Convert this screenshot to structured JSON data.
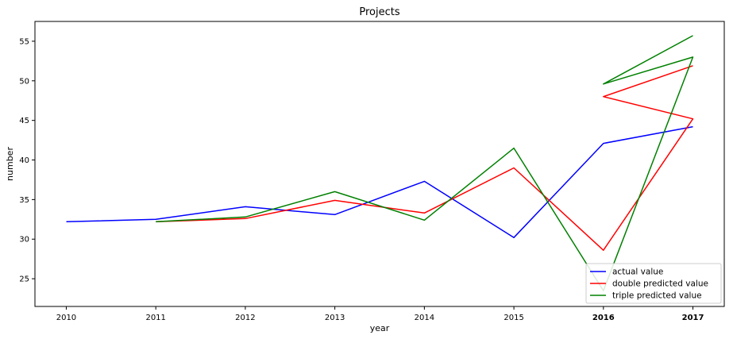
{
  "chart_data": {
    "type": "line",
    "title": "Projects",
    "xlabel": "year",
    "ylabel": "number",
    "xlim": [
      2009.65,
      2017.35
    ],
    "ylim": [
      21.5,
      57.5
    ],
    "xticks": [
      2010,
      2011,
      2012,
      2013,
      2014,
      2015,
      2016,
      2017
    ],
    "xtick_labels": [
      "2010",
      "2011",
      "2012",
      "2013",
      "2014",
      "2015",
      "2016",
      "2017"
    ],
    "xticks_bold": [
      2016,
      2017
    ],
    "yticks": [
      25,
      30,
      35,
      40,
      45,
      50,
      55
    ],
    "ytick_labels": [
      "25",
      "30",
      "35",
      "40",
      "45",
      "50",
      "55"
    ],
    "grid": false,
    "legend_position": "bottom-right",
    "series": [
      {
        "name": "actual value",
        "color": "#0000ff",
        "x": [
          2010,
          2011,
          2012,
          2013,
          2014,
          2015,
          2016,
          2017
        ],
        "y": [
          32.2,
          32.5,
          34.1,
          33.1,
          37.3,
          30.2,
          42.1,
          44.2
        ]
      },
      {
        "name": "double predicted value",
        "color": "#ff0000",
        "x": [
          2011,
          2012,
          2013,
          2014,
          2015,
          2016,
          2017,
          2016,
          2017
        ],
        "y": [
          32.2,
          32.6,
          34.9,
          33.3,
          39.0,
          28.6,
          45.2,
          48.0,
          51.9
        ]
      },
      {
        "name": "triple predicted value",
        "color": "#008000",
        "x": [
          2011,
          2012,
          2013,
          2014,
          2015,
          2016,
          2017,
          2016,
          2017
        ],
        "y": [
          32.2,
          32.8,
          36.0,
          32.4,
          41.5,
          23.5,
          53.0,
          49.6,
          55.7
        ]
      }
    ]
  }
}
